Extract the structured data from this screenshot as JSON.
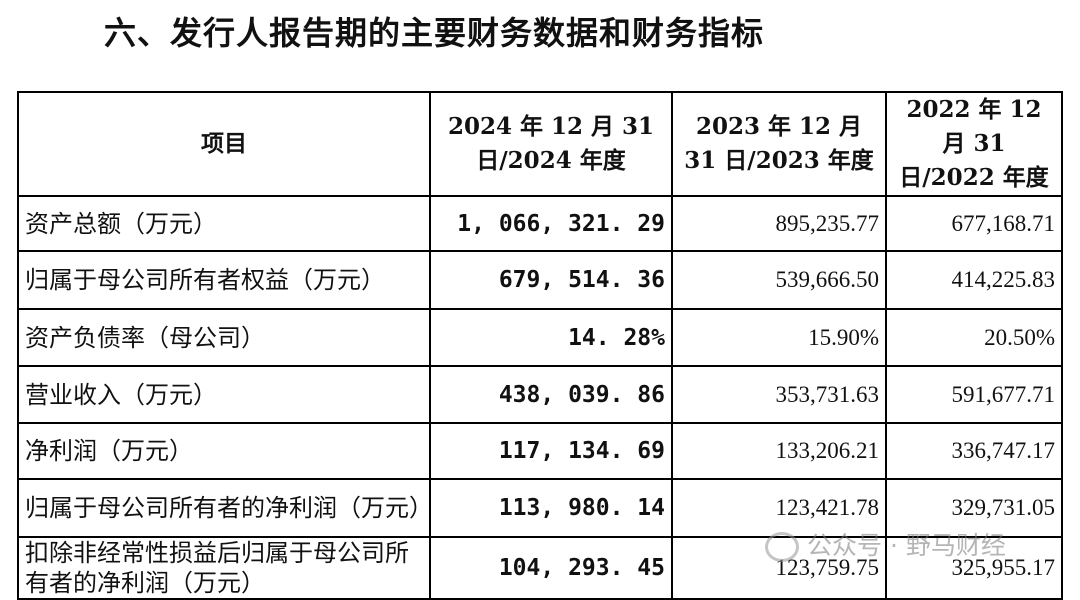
{
  "title": "六、发行人报告期的主要财务数据和财务指标",
  "table": {
    "headers": {
      "item": "项目",
      "y2024": "2024 年 12 月 31 日/2024 年度",
      "y2023": "2023 年 12 月 31 日/2023 年度",
      "y2022": "2022 年 12 月 31 日/2022 年度"
    },
    "rows": [
      {
        "label": "资产总额（万元）",
        "v2024": "1, 066, 321. 29",
        "v2023": "895,235.77",
        "v2022": "677,168.71"
      },
      {
        "label": "归属于母公司所有者权益（万元）",
        "v2024": "679, 514. 36",
        "v2023": "539,666.50",
        "v2022": "414,225.83"
      },
      {
        "label": "资产负债率（母公司）",
        "v2024": "14. 28%",
        "v2023": "15.90%",
        "v2022": "20.50%"
      },
      {
        "label": "营业收入（万元）",
        "v2024": "438, 039. 86",
        "v2023": "353,731.63",
        "v2022": "591,677.71"
      },
      {
        "label": "净利润（万元）",
        "v2024": "117, 134. 69",
        "v2023": "133,206.21",
        "v2022": "336,747.17"
      },
      {
        "label": "归属于母公司所有者的净利润（万元）",
        "v2024": "113, 980. 14",
        "v2023": "123,421.78",
        "v2022": "329,731.05"
      },
      {
        "label": "扣除非经常性损益后归属于母公司所有者的净利润（万元）",
        "v2024": "104, 293. 45",
        "v2023": "123,759.75",
        "v2022": "325,955.17"
      }
    ]
  },
  "watermark": {
    "text": "公众号 · 野马财经",
    "icon": "wechat-icon"
  }
}
